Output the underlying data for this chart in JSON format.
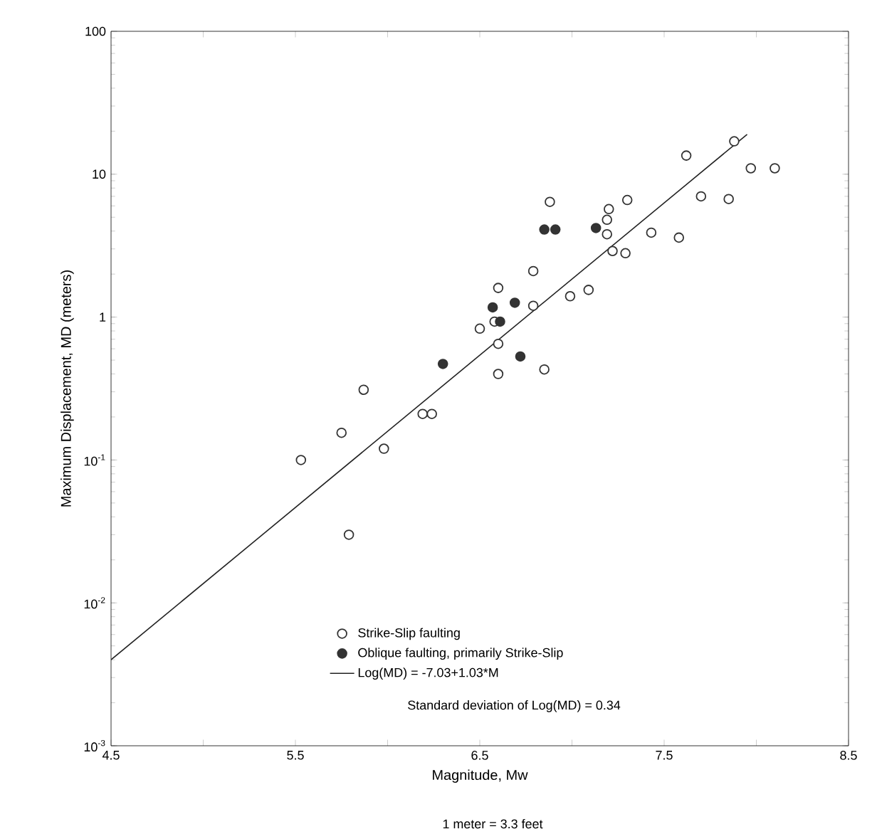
{
  "chart_data": {
    "type": "scatter",
    "xlabel": "Magnitude, Mw",
    "ylabel": "Maximum Displacement, MD (meters)",
    "annotations": [
      "Standard deviation of Log(MD) = 0.34",
      "1 meter = 3.3 feet"
    ],
    "xlim": [
      4.5,
      8.5
    ],
    "ylim": [
      0.001,
      100
    ],
    "log": "y",
    "xticks": [
      4.5,
      {
        "value": 5,
        "label": null
      },
      5.5,
      {
        "value": 6,
        "label": null
      },
      6.5,
      {
        "value": 7,
        "label": null
      },
      7.5,
      {
        "value": 8,
        "label": null
      },
      8.5
    ],
    "yticks": [
      {
        "value": 0.001,
        "label": "10$^{-3}$"
      },
      {
        "value": 0.01,
        "label": "10$^{-2}$"
      },
      {
        "value": 0.1,
        "label": "10$^{-1}$"
      },
      1,
      10,
      100
    ],
    "legend": "bottom right",
    "series": [
      {
        "name": "Strike-Slip faulting",
        "marker": "circle",
        "color": "#ffffff",
        "x": [
          5.53,
          5.75,
          5.87,
          5.98,
          5.79,
          6.19,
          6.24,
          6.5,
          6.58,
          6.6,
          6.6,
          6.6,
          6.79,
          6.79,
          6.85,
          6.88,
          6.99,
          7.09,
          7.2,
          7.19,
          7.19,
          7.22,
          7.3,
          7.29,
          7.43,
          7.58,
          7.62,
          7.7,
          7.85,
          7.88,
          7.97,
          8.1
        ],
        "values": [
          0.1,
          0.155,
          0.31,
          0.12,
          0.03,
          0.21,
          0.21,
          0.83,
          0.93,
          1.6,
          0.65,
          0.4,
          2.1,
          1.2,
          0.43,
          6.4,
          1.4,
          1.55,
          5.7,
          4.8,
          3.8,
          2.9,
          6.6,
          2.8,
          3.9,
          3.6,
          13.5,
          7.0,
          6.7,
          17,
          11,
          11
        ]
      },
      {
        "name": "Oblique  faulting, primarily Strike-Slip",
        "marker": "circle",
        "color": "#333333",
        "x": [
          6.3,
          6.57,
          6.61,
          6.69,
          6.72,
          6.85,
          6.91,
          7.13
        ],
        "values": [
          0.47,
          1.17,
          0.93,
          1.26,
          0.53,
          4.1,
          4.1,
          4.2
        ]
      },
      {
        "name": "Log(MD) = -7.03+1.03*M",
        "type": "line",
        "marker": "none",
        "line_style": "solid",
        "color": "#222222",
        "x": [
          4.5,
          7.95
        ],
        "values": [
          0.004,
          19
        ]
      }
    ]
  }
}
